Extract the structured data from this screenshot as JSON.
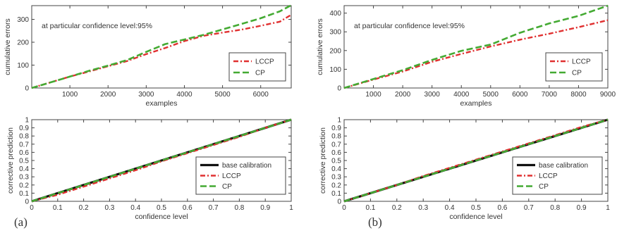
{
  "panel_labels": [
    "(a)",
    "(b)"
  ],
  "chart_data": [
    {
      "type": "line",
      "panel": "a-top",
      "title": "",
      "annotation": "at particular confidence level:95%",
      "xlabel": "examples",
      "ylabel": "cumulative errors",
      "xlim": [
        0,
        6800
      ],
      "ylim": [
        0,
        360
      ],
      "xticks": [
        1000,
        2000,
        3000,
        4000,
        5000,
        6000
      ],
      "yticks": [
        0,
        100,
        200,
        300
      ],
      "legend_position": "lower-right",
      "series": [
        {
          "name": "LCCP",
          "color": "#e03030",
          "style": "dashdot",
          "x": [
            0,
            500,
            1000,
            1500,
            2000,
            2500,
            3000,
            3500,
            4000,
            4500,
            5000,
            5500,
            6000,
            6500,
            6800
          ],
          "y": [
            0,
            25,
            50,
            72,
            95,
            118,
            148,
            175,
            205,
            228,
            242,
            255,
            272,
            290,
            320
          ]
        },
        {
          "name": "CP",
          "color": "#44aa33",
          "style": "dashed",
          "x": [
            0,
            500,
            1000,
            1500,
            2000,
            2500,
            3000,
            3500,
            4000,
            4500,
            5000,
            5500,
            6000,
            6500,
            6800
          ],
          "y": [
            0,
            25,
            50,
            75,
            98,
            122,
            158,
            192,
            212,
            232,
            256,
            280,
            305,
            335,
            362
          ]
        }
      ]
    },
    {
      "type": "line",
      "panel": "b-top",
      "title": "",
      "annotation": "at particular confidence level:95%",
      "xlabel": "examples",
      "ylabel": "cumulative errors",
      "xlim": [
        0,
        9000
      ],
      "ylim": [
        0,
        440
      ],
      "xticks": [
        1000,
        2000,
        3000,
        4000,
        5000,
        6000,
        7000,
        8000,
        9000
      ],
      "yticks": [
        0,
        100,
        200,
        300,
        400
      ],
      "legend_position": "lower-right",
      "series": [
        {
          "name": "LCCP",
          "color": "#e03030",
          "style": "dashdot",
          "x": [
            0,
            1000,
            2000,
            3000,
            4000,
            5000,
            6000,
            7000,
            8000,
            9000
          ],
          "y": [
            0,
            45,
            88,
            140,
            182,
            222,
            258,
            290,
            325,
            362
          ]
        },
        {
          "name": "CP",
          "color": "#44aa33",
          "style": "dashed",
          "x": [
            0,
            1000,
            2000,
            3000,
            4000,
            5000,
            6000,
            7000,
            8000,
            9000
          ],
          "y": [
            0,
            48,
            95,
            150,
            198,
            232,
            295,
            345,
            385,
            440
          ]
        }
      ]
    },
    {
      "type": "line",
      "panel": "a-bottom",
      "title": "",
      "xlabel": "confidence level",
      "ylabel": "corrective prediction",
      "xlim": [
        0,
        1
      ],
      "ylim": [
        0,
        1
      ],
      "xticks": [
        0,
        0.1,
        0.2,
        0.3,
        0.4,
        0.5,
        0.6,
        0.7,
        0.8,
        0.9,
        1
      ],
      "yticks": [
        0,
        0.1,
        0.2,
        0.3,
        0.4,
        0.5,
        0.6,
        0.7,
        0.8,
        0.9,
        1
      ],
      "legend_position": "lower-right",
      "series": [
        {
          "name": "base calibration",
          "color": "#111111",
          "style": "solid",
          "x": [
            0,
            1
          ],
          "y": [
            0,
            1
          ]
        },
        {
          "name": "LCCP",
          "color": "#e03030",
          "style": "dashdot",
          "x": [
            0,
            0.1,
            0.2,
            0.3,
            0.4,
            0.5,
            0.6,
            0.7,
            0.8,
            0.9,
            1
          ],
          "y": [
            0,
            0.08,
            0.18,
            0.28,
            0.38,
            0.49,
            0.59,
            0.69,
            0.79,
            0.9,
            1
          ]
        },
        {
          "name": "CP",
          "color": "#44aa33",
          "style": "dashed",
          "x": [
            0,
            0.1,
            0.2,
            0.3,
            0.4,
            0.5,
            0.6,
            0.7,
            0.8,
            0.9,
            1
          ],
          "y": [
            0,
            0.1,
            0.2,
            0.3,
            0.4,
            0.5,
            0.6,
            0.7,
            0.8,
            0.9,
            1
          ]
        }
      ]
    },
    {
      "type": "line",
      "panel": "b-bottom",
      "title": "",
      "xlabel": "confidence level",
      "ylabel": "corrective prediction",
      "xlim": [
        0,
        1
      ],
      "ylim": [
        0,
        1
      ],
      "xticks": [
        0,
        0.1,
        0.2,
        0.3,
        0.4,
        0.5,
        0.6,
        0.7,
        0.8,
        0.9,
        1
      ],
      "yticks": [
        0,
        0.1,
        0.2,
        0.3,
        0.4,
        0.5,
        0.6,
        0.7,
        0.8,
        0.9,
        1
      ],
      "legend_position": "lower-right",
      "series": [
        {
          "name": "base calibration",
          "color": "#111111",
          "style": "solid",
          "x": [
            0,
            1
          ],
          "y": [
            0,
            1
          ]
        },
        {
          "name": "LCCP",
          "color": "#e03030",
          "style": "dashdot",
          "x": [
            0,
            0.1,
            0.2,
            0.3,
            0.4,
            0.5,
            0.6,
            0.7,
            0.8,
            0.9,
            1
          ],
          "y": [
            0,
            0.1,
            0.2,
            0.31,
            0.41,
            0.51,
            0.61,
            0.71,
            0.81,
            0.91,
            1
          ]
        },
        {
          "name": "CP",
          "color": "#44aa33",
          "style": "dashed",
          "x": [
            0,
            0.1,
            0.2,
            0.3,
            0.4,
            0.5,
            0.6,
            0.7,
            0.8,
            0.9,
            1
          ],
          "y": [
            0,
            0.1,
            0.2,
            0.3,
            0.4,
            0.5,
            0.6,
            0.7,
            0.8,
            0.9,
            1
          ]
        }
      ]
    }
  ]
}
